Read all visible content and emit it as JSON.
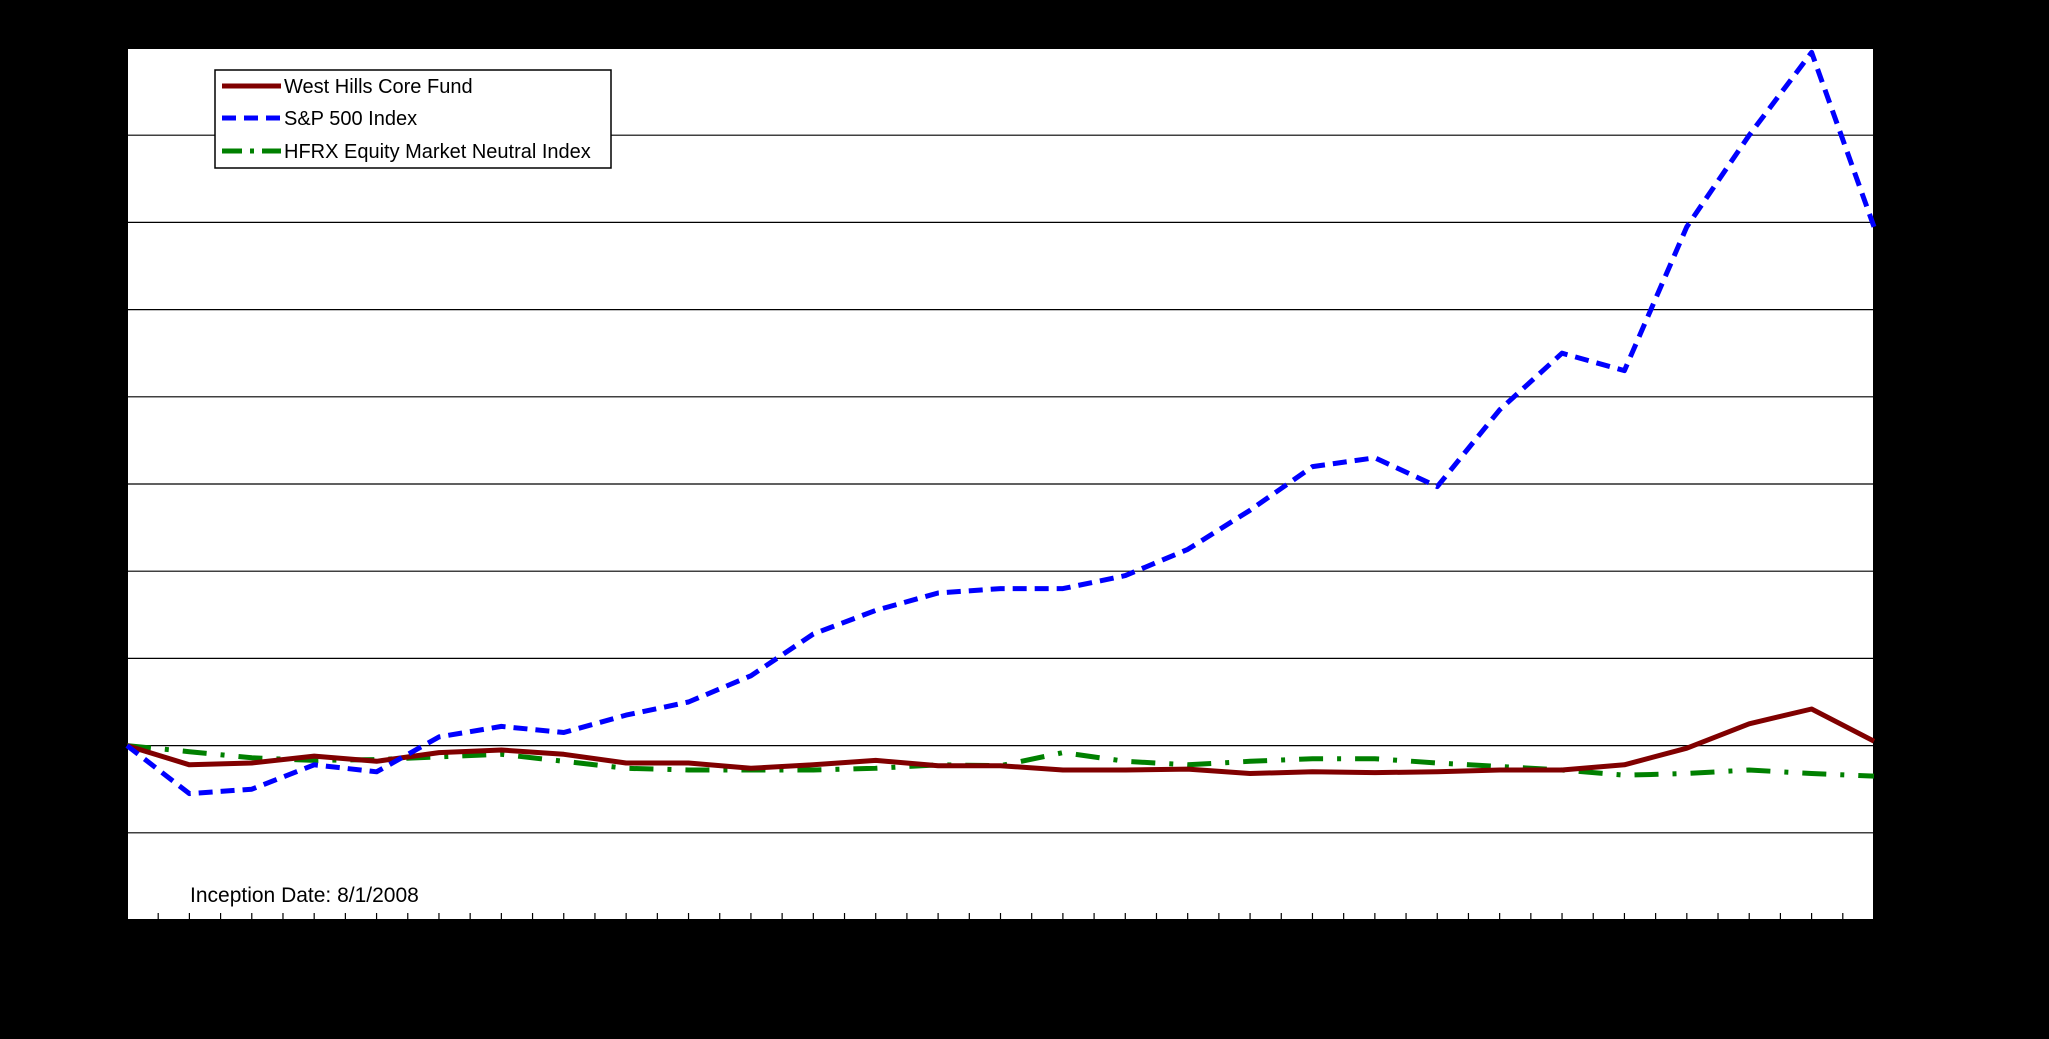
{
  "chart_data": {
    "type": "line",
    "title": "",
    "xlabel": "",
    "ylabel": "",
    "x": [
      1,
      2,
      3,
      4,
      5,
      6,
      7,
      8,
      9,
      10,
      11,
      12,
      13,
      14,
      15,
      16,
      17,
      18,
      19,
      20,
      21,
      22,
      23,
      24,
      25,
      26,
      27,
      28,
      29
    ],
    "ylim": [
      0,
      10
    ],
    "grid": true,
    "legend_position": "top-left",
    "series": [
      {
        "name": "West Hills Core Fund",
        "color": "#800000",
        "style": "solid",
        "values": [
          2.0,
          1.78,
          1.8,
          1.88,
          1.82,
          1.92,
          1.95,
          1.9,
          1.8,
          1.8,
          1.74,
          1.78,
          1.83,
          1.77,
          1.77,
          1.72,
          1.72,
          1.73,
          1.68,
          1.7,
          1.69,
          1.7,
          1.72,
          1.72,
          1.78,
          1.97,
          2.25,
          2.42,
          2.05
        ]
      },
      {
        "name": "S&P 500 Index",
        "color": "#0000FF",
        "style": "dashed",
        "values": [
          2.0,
          1.45,
          1.5,
          1.78,
          1.7,
          2.1,
          2.22,
          2.15,
          2.35,
          2.5,
          2.8,
          3.28,
          3.55,
          3.75,
          3.8,
          3.8,
          3.95,
          4.25,
          4.7,
          5.2,
          5.3,
          4.97,
          5.85,
          6.5,
          6.3,
          7.95,
          9.0,
          9.95,
          7.95
        ]
      },
      {
        "name": "HFRX Equity Market Neutral Index",
        "color": "#008000",
        "style": "dashdot",
        "values": [
          2.0,
          1.93,
          1.86,
          1.83,
          1.84,
          1.87,
          1.9,
          1.82,
          1.74,
          1.72,
          1.72,
          1.72,
          1.74,
          1.78,
          1.77,
          1.92,
          1.82,
          1.78,
          1.82,
          1.85,
          1.85,
          1.8,
          1.76,
          1.72,
          1.66,
          1.68,
          1.72,
          1.68,
          1.65
        ]
      }
    ],
    "annotations": [
      {
        "text": "Inception Date: 8/1/2008"
      }
    ]
  }
}
